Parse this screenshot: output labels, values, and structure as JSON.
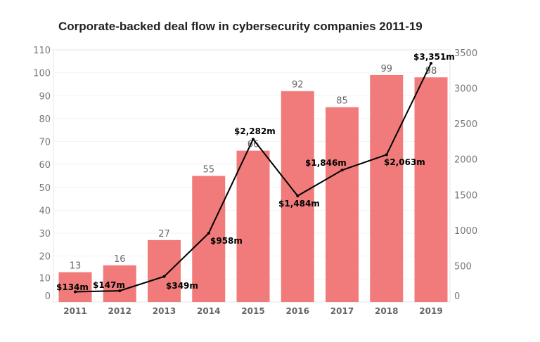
{
  "chart_data": {
    "type": "bar+line",
    "title": "Corporate-backed deal flow in cybersecurity companies 2011-19",
    "categories": [
      "2011",
      "2012",
      "2013",
      "2014",
      "2015",
      "2016",
      "2017",
      "2018",
      "2019"
    ],
    "series": [
      {
        "type": "bar",
        "axis": "left",
        "values": [
          13,
          16,
          27,
          55,
          66,
          92,
          85,
          99,
          98
        ],
        "color": "#f07b7a"
      },
      {
        "type": "line",
        "axis": "right",
        "values": [
          134,
          147,
          349,
          958,
          2282,
          1484,
          1846,
          2063,
          3351
        ],
        "labels": [
          "$134m",
          "$147m",
          "$349m",
          "$958m",
          "$2,282m",
          "$1,484m",
          "$1,846m",
          "$2,063m",
          "$3,351m"
        ],
        "color": "#000000"
      }
    ],
    "y_left": {
      "range": [
        0,
        110
      ],
      "ticks": [
        0,
        10,
        20,
        30,
        40,
        50,
        60,
        70,
        80,
        90,
        100,
        110
      ]
    },
    "y_right": {
      "range": [
        0,
        3500
      ],
      "ticks": [
        0,
        500,
        1000,
        1500,
        2000,
        2500,
        3000,
        3500
      ]
    },
    "grid": true
  }
}
